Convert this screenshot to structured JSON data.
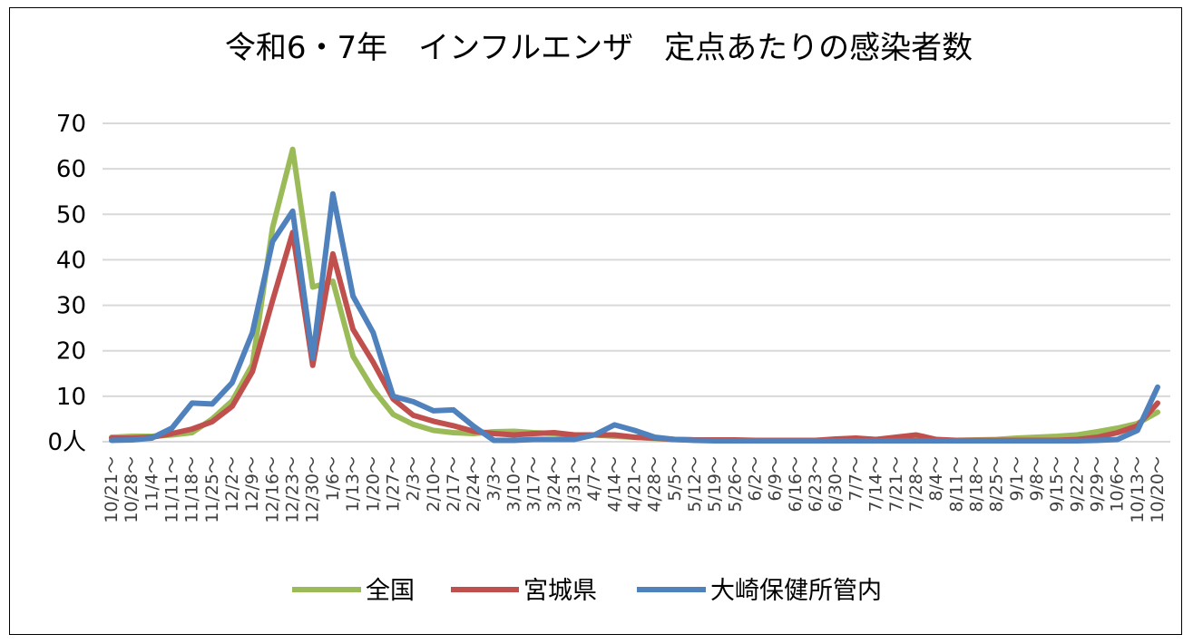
{
  "chart_data": {
    "type": "line",
    "title": "令和6・7年　インフルエンザ　定点あたりの感染者数",
    "xlabel": "",
    "ylabel": "",
    "ylim": [
      0,
      70
    ],
    "yticks": [
      0,
      10,
      20,
      30,
      40,
      50,
      60,
      70
    ],
    "ytick_labels": [
      "0人",
      "10",
      "20",
      "30",
      "40",
      "50",
      "60",
      "70"
    ],
    "grid": "horizontal",
    "legend_position": "bottom",
    "categories": [
      "10/21～",
      "10/28～",
      "11/4～",
      "11/11～",
      "11/18～",
      "11/25～",
      "12/2～",
      "12/9～",
      "12/16～",
      "12/23～",
      "12/30～",
      "1/6～",
      "1/13～",
      "1/20～",
      "1/27～",
      "2/3～",
      "2/10～",
      "2/17～",
      "2/24～",
      "3/3～",
      "3/10～",
      "3/17～",
      "3/24～",
      "3/31～",
      "4/7～",
      "4/14～",
      "4/21～",
      "4/28～",
      "5/5～",
      "5/12～",
      "5/19～",
      "5/26～",
      "6/2～",
      "6/9～",
      "6/16～",
      "6/23～",
      "6/30～",
      "7/7～",
      "7/14～",
      "7/21～",
      "7/28～",
      "8/4～",
      "8/11～",
      "8/18～",
      "8/25～",
      "9/1～",
      "9/8～",
      "9/15～",
      "9/22～",
      "9/29～",
      "10/6～",
      "10/13～",
      "10/20～"
    ],
    "series": [
      {
        "name": "全国",
        "color": "#9bbb59",
        "values": [
          1.0,
          1.2,
          1.2,
          1.5,
          2.0,
          5.0,
          9.0,
          17.0,
          47.0,
          64.3,
          34.0,
          35.3,
          18.8,
          11.5,
          6.0,
          3.8,
          2.5,
          2.0,
          1.8,
          2.2,
          2.3,
          2.0,
          1.8,
          1.5,
          1.5,
          1.2,
          1.0,
          0.7,
          0.5,
          0.4,
          0.4,
          0.3,
          0.3,
          0.3,
          0.3,
          0.3,
          0.3,
          0.3,
          0.3,
          0.3,
          0.3,
          0.3,
          0.3,
          0.4,
          0.5,
          0.8,
          1.0,
          1.2,
          1.5,
          2.2,
          3.0,
          4.0,
          6.5
        ]
      },
      {
        "name": "宮城県",
        "color": "#c0504d",
        "values": [
          0.8,
          0.8,
          1.0,
          1.8,
          2.8,
          4.4,
          7.8,
          15.4,
          31.0,
          46.0,
          16.8,
          41.3,
          24.7,
          17.5,
          9.4,
          5.8,
          4.5,
          3.5,
          2.3,
          1.8,
          1.5,
          1.8,
          2.0,
          1.5,
          1.5,
          1.5,
          1.0,
          0.8,
          0.5,
          0.4,
          0.4,
          0.4,
          0.3,
          0.3,
          0.3,
          0.3,
          0.6,
          0.8,
          0.5,
          1.0,
          1.5,
          0.5,
          0.3,
          0.3,
          0.3,
          0.3,
          0.3,
          0.3,
          0.5,
          1.0,
          2.0,
          3.5,
          8.5
        ]
      },
      {
        "name": "大崎保健所管内",
        "color": "#4f81bd",
        "values": [
          0.3,
          0.4,
          0.8,
          3.0,
          8.5,
          8.3,
          13.0,
          24.0,
          44.0,
          50.7,
          18.4,
          54.5,
          32.0,
          24.0,
          10.0,
          8.8,
          6.8,
          7.0,
          3.4,
          0.3,
          0.3,
          0.5,
          0.5,
          0.5,
          1.5,
          3.7,
          2.5,
          1.0,
          0.5,
          0.3,
          0.2,
          0.2,
          0.2,
          0.2,
          0.2,
          0.2,
          0.2,
          0.2,
          0.2,
          0.2,
          0.2,
          0.2,
          0.2,
          0.2,
          0.2,
          0.2,
          0.2,
          0.2,
          0.2,
          0.3,
          0.5,
          2.5,
          12.0
        ]
      }
    ]
  }
}
